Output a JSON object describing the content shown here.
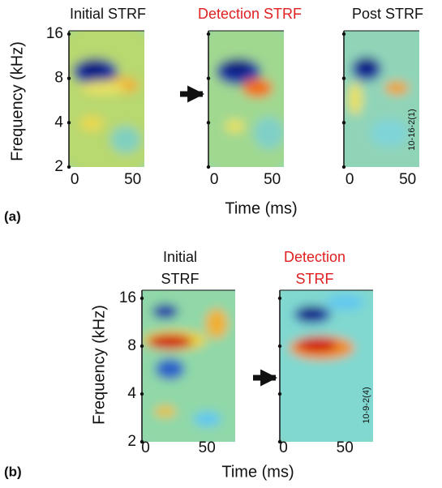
{
  "panels": [
    {
      "label": "(a)",
      "y_label": "Frequency (kHz)",
      "x_label": "Time (ms)",
      "ylim": [
        2,
        16
      ],
      "yticks": [
        16,
        8,
        4,
        2
      ],
      "log_y": true,
      "xlim": [
        -5,
        60
      ],
      "xticks": [
        0,
        50
      ],
      "maps": [
        {
          "title": [
            "Initial STRF"
          ],
          "title_color": "#111111"
        },
        {
          "title": [
            "Detection STRF"
          ],
          "title_color": "#e02020"
        },
        {
          "title": [
            "Post STRF"
          ],
          "title_color": "#111111",
          "id": "10-16-2(1)"
        }
      ]
    },
    {
      "label": "(b)",
      "y_label": "Frequency (kHz)",
      "x_label": "Time (ms)",
      "ylim": [
        2,
        16
      ],
      "yticks": [
        16,
        8,
        4,
        2
      ],
      "log_y": true,
      "xlim": [
        -3,
        73
      ],
      "xticks": [
        0,
        50
      ],
      "maps": [
        {
          "title": [
            "Initial",
            "STRF"
          ],
          "title_color": "#111111"
        },
        {
          "title": [
            "Detection",
            "STRF"
          ],
          "title_color": "#e02020",
          "id": "10-9-2(4)"
        }
      ]
    }
  ]
}
